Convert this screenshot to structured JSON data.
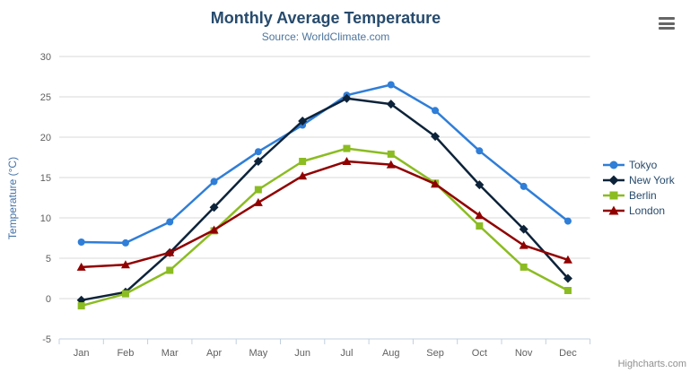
{
  "header": {
    "title": "Monthly Average Temperature",
    "subtitle": "Source: WorldClimate.com"
  },
  "context_menu": {
    "icon": "hamburger-icon"
  },
  "credits": {
    "label": "Highcharts.com"
  },
  "chart_data": {
    "type": "line",
    "title": "Monthly Average Temperature",
    "subtitle": "Source: WorldClimate.com",
    "categories": [
      "Jan",
      "Feb",
      "Mar",
      "Apr",
      "May",
      "Jun",
      "Jul",
      "Aug",
      "Sep",
      "Oct",
      "Nov",
      "Dec"
    ],
    "xlabel": "",
    "ylabel": "Temperature (°C)",
    "ylim": [
      -5,
      30
    ],
    "ytick_step": 5,
    "yticks": [
      30,
      25,
      20,
      15,
      10,
      5,
      0,
      -5
    ],
    "grid": true,
    "legend_position": "right",
    "colors": {
      "grid": "#d8d8d8",
      "axis_line": "#c0d0e0",
      "tick": "#c0d0e0",
      "axis_label": "#606060",
      "title": "#274b6d",
      "subtitle": "#4d759e",
      "y_title": "#4572a7",
      "legend_text": "#274b6d",
      "credits_text": "#909090"
    },
    "series": [
      {
        "name": "Tokyo",
        "color": "#2f7ed8",
        "marker": "circle",
        "values": [
          7.0,
          6.9,
          9.5,
          14.5,
          18.2,
          21.5,
          25.2,
          26.5,
          23.3,
          18.3,
          13.9,
          9.6
        ]
      },
      {
        "name": "New York",
        "color": "#0d233a",
        "marker": "diamond",
        "values": [
          -0.2,
          0.8,
          5.7,
          11.3,
          17.0,
          22.0,
          24.8,
          24.1,
          20.1,
          14.1,
          8.6,
          2.5
        ]
      },
      {
        "name": "Berlin",
        "color": "#8bbc21",
        "marker": "square",
        "values": [
          -0.9,
          0.6,
          3.5,
          8.4,
          13.5,
          17.0,
          18.6,
          17.9,
          14.3,
          9.0,
          3.9,
          1.0
        ]
      },
      {
        "name": "London",
        "color": "#910000",
        "marker": "triangle",
        "values": [
          3.9,
          4.2,
          5.7,
          8.5,
          11.9,
          15.2,
          17.0,
          16.6,
          14.2,
          10.3,
          6.6,
          4.8
        ]
      }
    ]
  }
}
